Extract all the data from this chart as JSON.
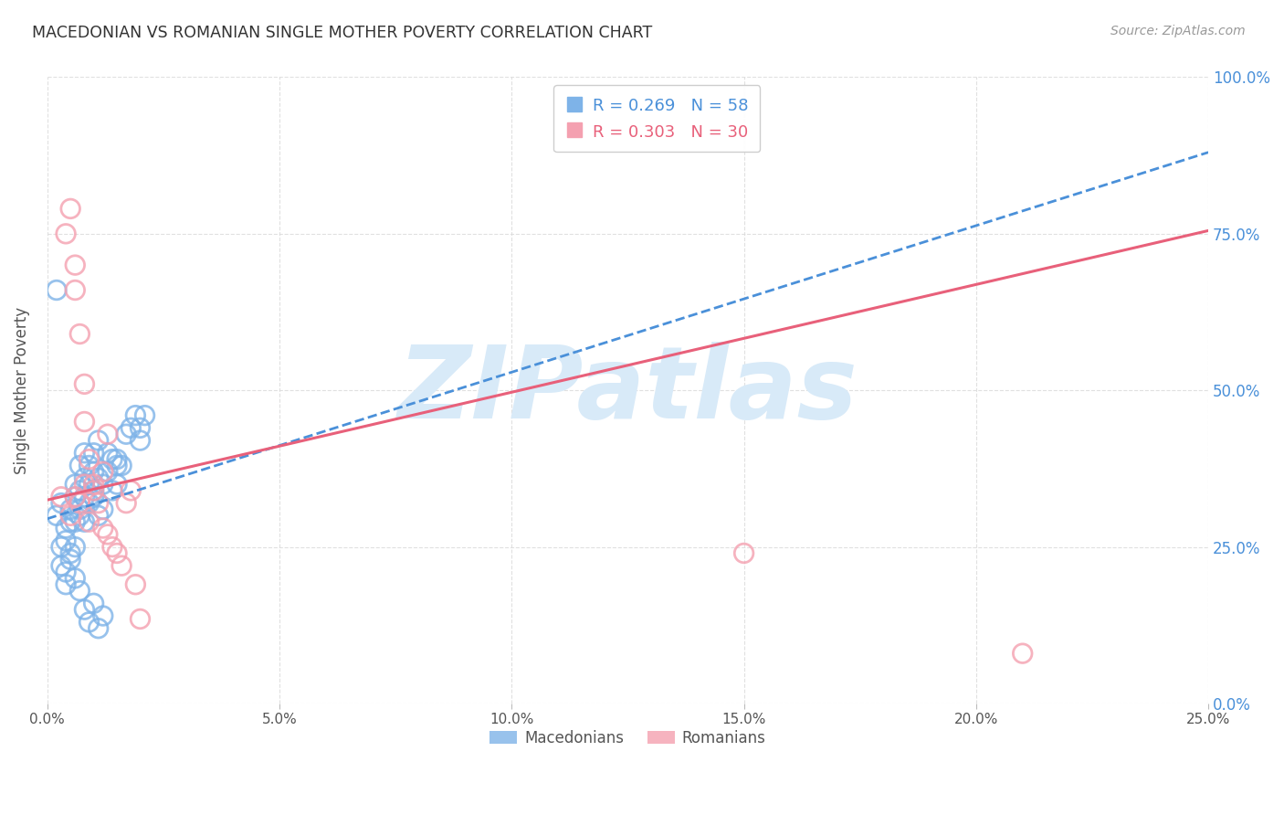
{
  "title": "MACEDONIAN VS ROMANIAN SINGLE MOTHER POVERTY CORRELATION CHART",
  "source": "Source: ZipAtlas.com",
  "ylabel": "Single Mother Poverty",
  "legend_mac": {
    "R": 0.269,
    "N": 58
  },
  "legend_rom": {
    "R": 0.303,
    "N": 30
  },
  "xlim": [
    0.0,
    0.25
  ],
  "ylim": [
    0.0,
    1.0
  ],
  "ytick_labels": [
    "0.0%",
    "25.0%",
    "50.0%",
    "75.0%",
    "100.0%"
  ],
  "ytick_values": [
    0.0,
    0.25,
    0.5,
    0.75,
    1.0
  ],
  "xtick_labels": [
    "0.0%",
    "5.0%",
    "10.0%",
    "15.0%",
    "20.0%",
    "25.0%"
  ],
  "xtick_values": [
    0.0,
    0.05,
    0.1,
    0.15,
    0.2,
    0.25
  ],
  "mac_color": "#7EB3E8",
  "rom_color": "#F4A0B0",
  "mac_line_color": "#4A90D9",
  "rom_line_color": "#E8607A",
  "watermark": "ZIPatlas",
  "watermark_color": "#D8EAF8",
  "mac_scatter_x": [
    0.002,
    0.003,
    0.004,
    0.004,
    0.005,
    0.005,
    0.006,
    0.006,
    0.006,
    0.007,
    0.007,
    0.007,
    0.007,
    0.008,
    0.008,
    0.008,
    0.008,
    0.009,
    0.009,
    0.009,
    0.01,
    0.01,
    0.01,
    0.011,
    0.011,
    0.011,
    0.012,
    0.012,
    0.013,
    0.013,
    0.014,
    0.014,
    0.015,
    0.015,
    0.016,
    0.017,
    0.018,
    0.019,
    0.02,
    0.021,
    0.003,
    0.004,
    0.005,
    0.006,
    0.007,
    0.008,
    0.009,
    0.01,
    0.011,
    0.012,
    0.002,
    0.003,
    0.004,
    0.005,
    0.006,
    0.01,
    0.015,
    0.02
  ],
  "mac_scatter_y": [
    0.3,
    0.32,
    0.28,
    0.26,
    0.31,
    0.29,
    0.33,
    0.35,
    0.29,
    0.31,
    0.34,
    0.38,
    0.3,
    0.36,
    0.4,
    0.33,
    0.29,
    0.38,
    0.35,
    0.32,
    0.37,
    0.4,
    0.34,
    0.42,
    0.36,
    0.3,
    0.35,
    0.31,
    0.4,
    0.37,
    0.39,
    0.34,
    0.39,
    0.35,
    0.38,
    0.43,
    0.44,
    0.46,
    0.44,
    0.46,
    0.22,
    0.19,
    0.24,
    0.2,
    0.18,
    0.15,
    0.13,
    0.16,
    0.12,
    0.14,
    0.66,
    0.25,
    0.21,
    0.23,
    0.25,
    0.33,
    0.38,
    0.42
  ],
  "rom_scatter_x": [
    0.003,
    0.004,
    0.005,
    0.006,
    0.006,
    0.007,
    0.008,
    0.008,
    0.009,
    0.01,
    0.011,
    0.012,
    0.013,
    0.014,
    0.015,
    0.016,
    0.017,
    0.018,
    0.019,
    0.02,
    0.007,
    0.008,
    0.009,
    0.01,
    0.012,
    0.15,
    0.005,
    0.006,
    0.21,
    0.013
  ],
  "rom_scatter_y": [
    0.33,
    0.75,
    0.79,
    0.7,
    0.66,
    0.59,
    0.51,
    0.45,
    0.39,
    0.35,
    0.32,
    0.28,
    0.27,
    0.25,
    0.24,
    0.22,
    0.32,
    0.34,
    0.19,
    0.135,
    0.32,
    0.35,
    0.29,
    0.34,
    0.37,
    0.24,
    0.3,
    0.33,
    0.08,
    0.43
  ],
  "mac_trend_x": [
    0.0,
    0.25
  ],
  "mac_trend_y": [
    0.295,
    0.88
  ],
  "rom_trend_x": [
    0.0,
    0.25
  ],
  "rom_trend_y": [
    0.325,
    0.755
  ],
  "background_color": "#FFFFFF",
  "grid_color": "#DDDDDD",
  "title_color": "#333333",
  "axis_label_color": "#555555",
  "right_tick_color": "#4A90D9",
  "bottom_legend_labels": [
    "Macedonians",
    "Romanians"
  ]
}
